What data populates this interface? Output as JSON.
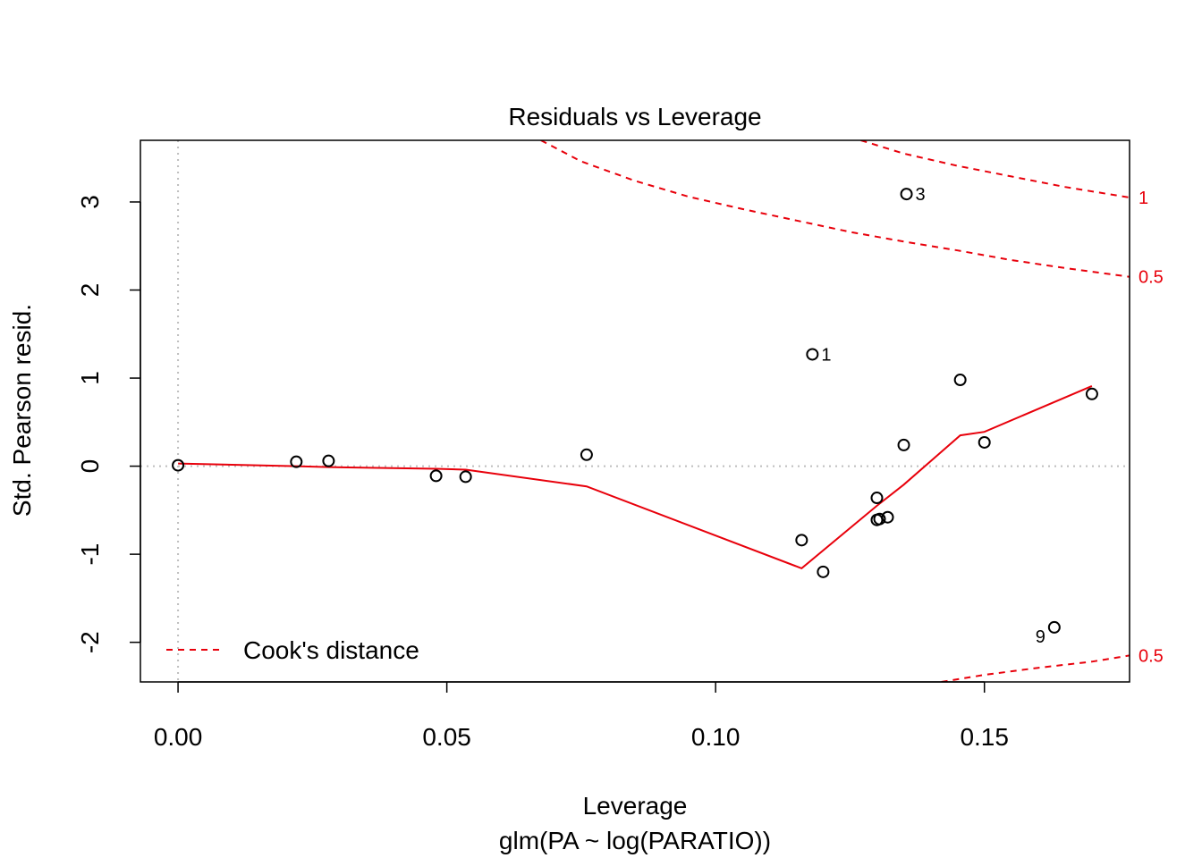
{
  "chart_data": {
    "type": "scatter",
    "title": "Residuals vs Leverage",
    "xlabel": "Leverage",
    "subtitle": "glm(PA ~ log(PARATIO))",
    "ylabel": "Std. Pearson resid.",
    "xlim": [
      -0.007,
      0.177
    ],
    "ylim": [
      -2.45,
      3.7
    ],
    "xticks": [
      0.0,
      0.05,
      0.1,
      0.15
    ],
    "xtick_labels": [
      "0.00",
      "0.05",
      "0.10",
      "0.15"
    ],
    "yticks": [
      -2,
      -1,
      0,
      1,
      2,
      3
    ],
    "ytick_labels": [
      "-2",
      "-1",
      "0",
      "1",
      "2",
      "3"
    ],
    "points": [
      {
        "x": 0.0,
        "y": 0.01,
        "label": ""
      },
      {
        "x": 0.022,
        "y": 0.05,
        "label": ""
      },
      {
        "x": 0.028,
        "y": 0.06,
        "label": ""
      },
      {
        "x": 0.048,
        "y": -0.11,
        "label": ""
      },
      {
        "x": 0.0535,
        "y": -0.12,
        "label": ""
      },
      {
        "x": 0.076,
        "y": 0.13,
        "label": ""
      },
      {
        "x": 0.116,
        "y": -0.84,
        "label": ""
      },
      {
        "x": 0.118,
        "y": 1.27,
        "label": "1"
      },
      {
        "x": 0.12,
        "y": -1.2,
        "label": ""
      },
      {
        "x": 0.13,
        "y": -0.36,
        "label": ""
      },
      {
        "x": 0.13,
        "y": -0.61,
        "label": ""
      },
      {
        "x": 0.1305,
        "y": -0.6,
        "label": ""
      },
      {
        "x": 0.132,
        "y": -0.58,
        "label": ""
      },
      {
        "x": 0.135,
        "y": 0.24,
        "label": ""
      },
      {
        "x": 0.1355,
        "y": 3.09,
        "label": "3"
      },
      {
        "x": 0.1455,
        "y": 0.98,
        "label": "",
        "note": ""
      },
      {
        "x": 0.15,
        "y": 0.27,
        "label": ""
      },
      {
        "x": 0.163,
        "y": -1.83,
        "label": "9"
      },
      {
        "x": 0.17,
        "y": 0.82,
        "label": ""
      }
    ],
    "smooth_line": {
      "x": [
        0.0,
        0.022,
        0.028,
        0.048,
        0.0535,
        0.076,
        0.116,
        0.13,
        0.135,
        0.1455,
        0.15,
        0.17
      ],
      "y": [
        0.03,
        0.0,
        -0.01,
        -0.03,
        -0.04,
        -0.23,
        -1.16,
        -0.45,
        -0.21,
        0.35,
        0.39,
        0.91
      ]
    },
    "cook_curves": [
      {
        "level_label": "1",
        "x": [
          0.127,
          0.135,
          0.145,
          0.155,
          0.165,
          0.177
        ],
        "y": [
          3.7,
          3.55,
          3.41,
          3.29,
          3.17,
          3.05
        ]
      },
      {
        "level_label": "0.5",
        "x": [
          0.0675,
          0.075,
          0.085,
          0.095,
          0.105,
          0.115,
          0.125,
          0.135,
          0.145,
          0.155,
          0.165,
          0.177
        ],
        "y": [
          3.7,
          3.46,
          3.24,
          3.06,
          2.92,
          2.79,
          2.66,
          2.55,
          2.45,
          2.34,
          2.25,
          2.15
        ]
      },
      {
        "level_label": "0.5",
        "x": [
          0.142,
          0.15,
          0.16,
          0.17,
          0.177
        ],
        "y": [
          -2.45,
          -2.37,
          -2.29,
          -2.22,
          -2.15
        ]
      }
    ],
    "reference_lines": {
      "h": 0,
      "v": 0
    },
    "legend": {
      "label": "Cook's distance",
      "position": "bottom-left"
    }
  }
}
